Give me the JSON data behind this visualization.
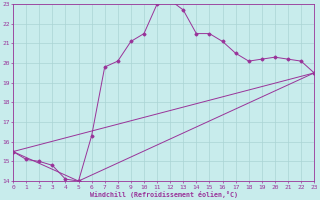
{
  "xlabel": "Windchill (Refroidissement éolien,°C)",
  "background_color": "#c8ecec",
  "grid_color": "#aad4d4",
  "line_color": "#993399",
  "xmin": 0,
  "xmax": 23,
  "ymin": 14,
  "ymax": 23,
  "line1_x": [
    0,
    1,
    2,
    3,
    4,
    5,
    6,
    7,
    8,
    9,
    10,
    11,
    12,
    13,
    14,
    15,
    16,
    17,
    18,
    19,
    20,
    21,
    22,
    23
  ],
  "line1_y": [
    15.5,
    15.1,
    15.0,
    14.8,
    14.1,
    14.0,
    16.3,
    19.8,
    20.1,
    21.1,
    21.5,
    23.0,
    23.2,
    22.7,
    21.5,
    21.5,
    21.1,
    20.5,
    20.1,
    20.2,
    20.3,
    20.2,
    20.1,
    19.5
  ],
  "line2_x": [
    0,
    5,
    23
  ],
  "line2_y": [
    15.5,
    14.0,
    19.5
  ],
  "line3_x": [
    0,
    23
  ],
  "line3_y": [
    15.5,
    19.5
  ]
}
